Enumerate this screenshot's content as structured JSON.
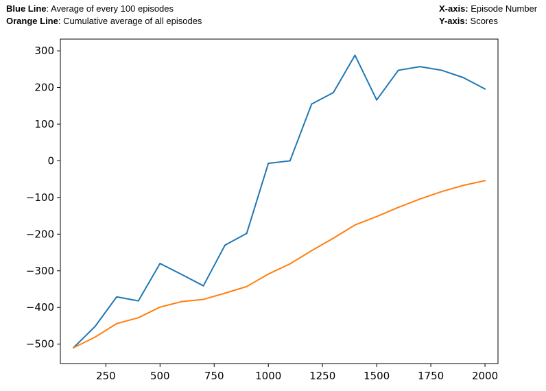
{
  "captions": {
    "left": [
      {
        "key": "Blue Line",
        "value": ": Average of every 100 episodes"
      },
      {
        "key": "Orange Line",
        "value": ": Cumulative average of all episodes"
      }
    ],
    "right": [
      {
        "key": "X-axis:",
        "value": " Episode Number"
      },
      {
        "key": "Y-axis:",
        "value": " Scores"
      }
    ]
  },
  "chart_data": {
    "type": "line",
    "title": "",
    "xlabel": "",
    "ylabel": "",
    "xlim": [
      40,
      2060
    ],
    "ylim": [
      -553,
      332
    ],
    "xticks": [
      250,
      500,
      750,
      1000,
      1250,
      1500,
      1750,
      2000
    ],
    "xtick_labels": [
      "250",
      "500",
      "750",
      "1000",
      "1250",
      "1500",
      "1750",
      "2000"
    ],
    "yticks": [
      300,
      200,
      100,
      0,
      -100,
      -200,
      -300,
      -400,
      -500
    ],
    "ytick_labels": [
      "300",
      "200",
      "100",
      "0",
      "−100",
      "−200",
      "−300",
      "−400",
      "−500"
    ],
    "grid": false,
    "legend": "none",
    "x": [
      100,
      200,
      300,
      400,
      500,
      600,
      700,
      800,
      900,
      1000,
      1100,
      1200,
      1300,
      1400,
      1500,
      1600,
      1700,
      1800,
      1900,
      2000
    ],
    "series": [
      {
        "color": "#1f77b4",
        "values": [
          -510,
          -452,
          -371,
          -382,
          -280,
          -310,
          -341,
          -230,
          -198,
          -7,
          0,
          155,
          186,
          288,
          166,
          247,
          257,
          247,
          227,
          196
        ]
      },
      {
        "color": "#ff7f0e",
        "values": [
          -510,
          -481,
          -444,
          -428,
          -399,
          -384,
          -378,
          -361,
          -343,
          -309,
          -281,
          -245,
          -211,
          -175,
          -152,
          -127,
          -104,
          -84,
          -67,
          -54
        ]
      }
    ]
  }
}
